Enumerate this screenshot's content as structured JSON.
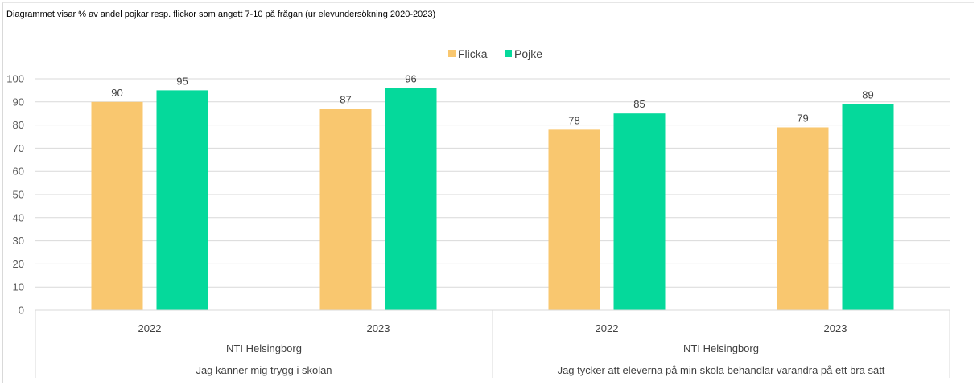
{
  "caption": "Diagrammet visar % av andel pojkar resp. flickor som angett 7-10 på frågan (ur elevundersökning 2020-2023)",
  "chart_data": {
    "type": "bar",
    "title": "",
    "ylim": [
      0,
      100
    ],
    "yticks": [
      0,
      10,
      20,
      30,
      40,
      50,
      60,
      70,
      80,
      90,
      100
    ],
    "grid": true,
    "legend_position": "top-center",
    "categories": [
      "2022",
      "2023",
      "2022",
      "2023"
    ],
    "groups": [
      {
        "school": "NTI Helsingborg",
        "question": "Jag känner mig trygg i skolan"
      },
      {
        "school": "NTI Helsingborg",
        "question": "Jag tycker att eleverna på min skola behandlar varandra på ett bra sätt"
      }
    ],
    "series": [
      {
        "name": "Flicka",
        "color": "#f9c76f",
        "values": [
          90,
          87,
          78,
          79
        ]
      },
      {
        "name": "Pojke",
        "color": "#05d99b",
        "values": [
          95,
          96,
          85,
          89
        ]
      }
    ]
  }
}
